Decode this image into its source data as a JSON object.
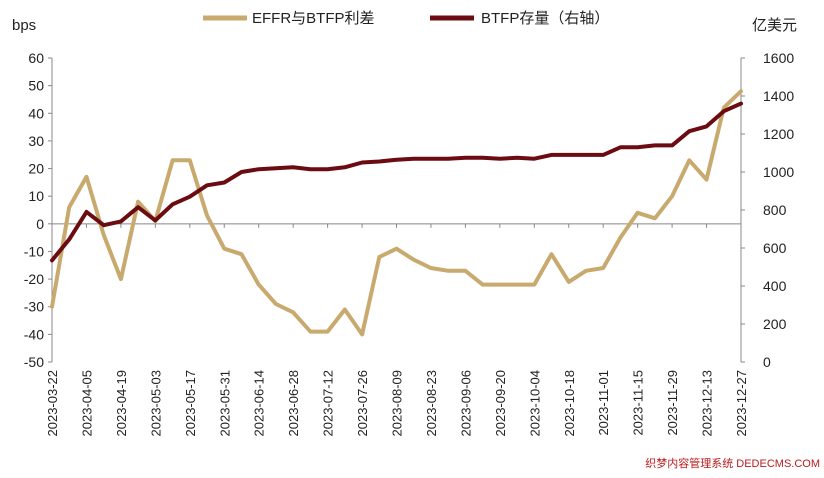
{
  "chart_data": {
    "type": "line",
    "dual_axis": true,
    "left_axis": {
      "unit_label": "bps",
      "ylim": [
        -50,
        60
      ],
      "ticks": [
        -50,
        -40,
        -30,
        -20,
        -10,
        0,
        10,
        20,
        30,
        40,
        50,
        60
      ]
    },
    "right_axis": {
      "unit_label": "亿美元",
      "ylim": [
        0,
        1600
      ],
      "ticks": [
        0,
        200,
        400,
        600,
        800,
        1000,
        1200,
        1400,
        1600
      ]
    },
    "x_tick_labels": [
      "2023-03-22",
      "2023-04-05",
      "2023-04-19",
      "2023-05-03",
      "2023-05-17",
      "2023-05-31",
      "2023-06-14",
      "2023-06-28",
      "2023-07-12",
      "2023-07-26",
      "2023-08-09",
      "2023-08-23",
      "2023-09-06",
      "2023-09-20",
      "2023-10-04",
      "2023-10-18",
      "2023-11-01",
      "2023-11-15",
      "2023-11-29",
      "2023-12-13",
      "2023-12-27"
    ],
    "x": [
      "2023-03-22",
      "2023-03-29",
      "2023-04-05",
      "2023-04-12",
      "2023-04-19",
      "2023-04-26",
      "2023-05-03",
      "2023-05-10",
      "2023-05-17",
      "2023-05-24",
      "2023-05-31",
      "2023-06-07",
      "2023-06-14",
      "2023-06-21",
      "2023-06-28",
      "2023-07-05",
      "2023-07-12",
      "2023-07-19",
      "2023-07-26",
      "2023-08-02",
      "2023-08-09",
      "2023-08-16",
      "2023-08-23",
      "2023-08-30",
      "2023-09-06",
      "2023-09-13",
      "2023-09-20",
      "2023-09-27",
      "2023-10-04",
      "2023-10-11",
      "2023-10-18",
      "2023-10-25",
      "2023-11-01",
      "2023-11-08",
      "2023-11-15",
      "2023-11-22",
      "2023-11-29",
      "2023-12-06",
      "2023-12-13",
      "2023-12-20",
      "2023-12-27"
    ],
    "series": [
      {
        "name": "EFFR与BTFP利差",
        "axis": "left",
        "color": "#c8a96e",
        "values": [
          -30,
          6,
          17,
          -4,
          -20,
          8,
          1,
          23,
          23,
          3,
          -9,
          -11,
          -22,
          -29,
          -32,
          -39,
          -39,
          -31,
          -40,
          -12,
          -9,
          -13,
          -16,
          -17,
          -17,
          -22,
          -22,
          -22,
          -22,
          -11,
          -21,
          -17,
          -16,
          -5,
          4,
          2,
          10,
          23,
          16,
          42,
          48
        ]
      },
      {
        "name": "BTFP存量（右轴）",
        "axis": "right",
        "color": "#6b0c12",
        "values": [
          535,
          645,
          790,
          720,
          740,
          815,
          745,
          830,
          870,
          930,
          945,
          1000,
          1015,
          1020,
          1025,
          1015,
          1015,
          1025,
          1050,
          1055,
          1065,
          1070,
          1070,
          1070,
          1075,
          1075,
          1070,
          1075,
          1070,
          1090,
          1090,
          1090,
          1090,
          1130,
          1130,
          1140,
          1140,
          1215,
          1240,
          1320,
          1360
        ]
      }
    ],
    "legend_position": "top-center",
    "grid": false
  },
  "watermark": "织梦内容管理系统 DEDECMS.COM"
}
